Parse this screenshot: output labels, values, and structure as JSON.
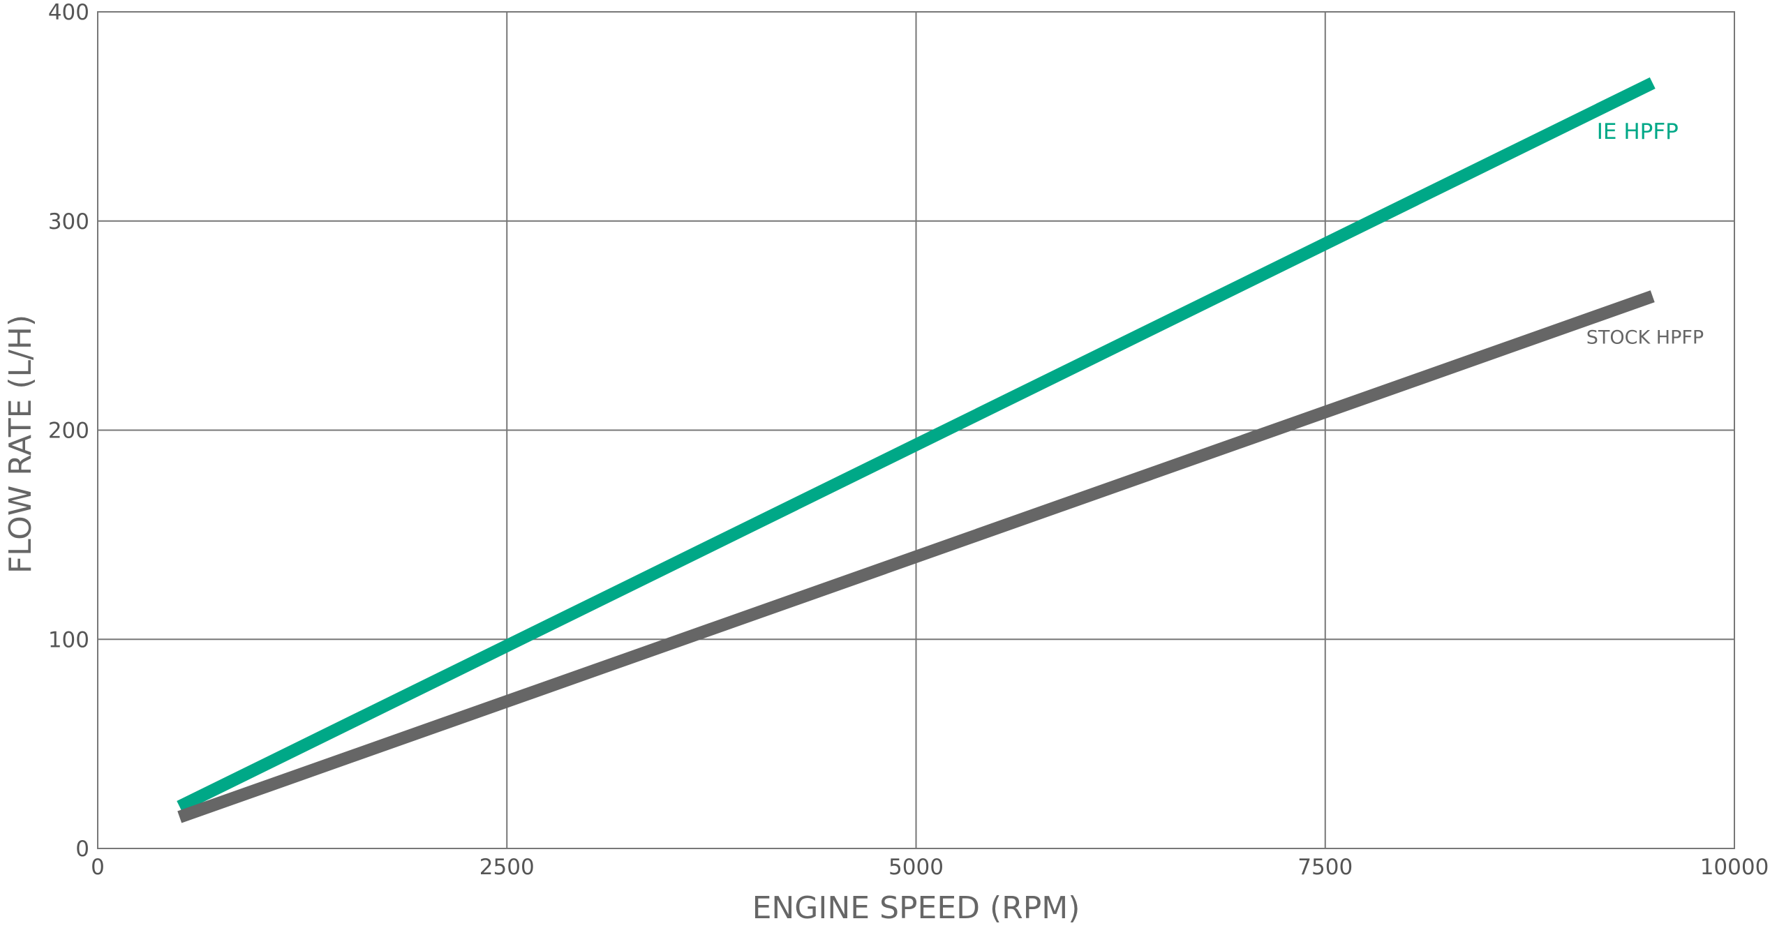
{
  "chart_data": {
    "type": "line",
    "title": "",
    "xlabel": "ENGINE SPEED (RPM)",
    "ylabel": "FLOW RATE (L/H)",
    "xlim": [
      0,
      10000
    ],
    "ylim": [
      0,
      400
    ],
    "xticks": [
      "0",
      "2500",
      "5000",
      "7500",
      "10000"
    ],
    "yticks": [
      "0",
      "100",
      "200",
      "300",
      "400"
    ],
    "grid": true,
    "series": [
      {
        "name": "IE HPFP",
        "color": "#00a887",
        "x": [
          500,
          9500
        ],
        "y": [
          20,
          366
        ]
      },
      {
        "name": "STOCK HPFP",
        "color": "#666666",
        "x": [
          500,
          9500
        ],
        "y": [
          15,
          264
        ]
      }
    ]
  }
}
